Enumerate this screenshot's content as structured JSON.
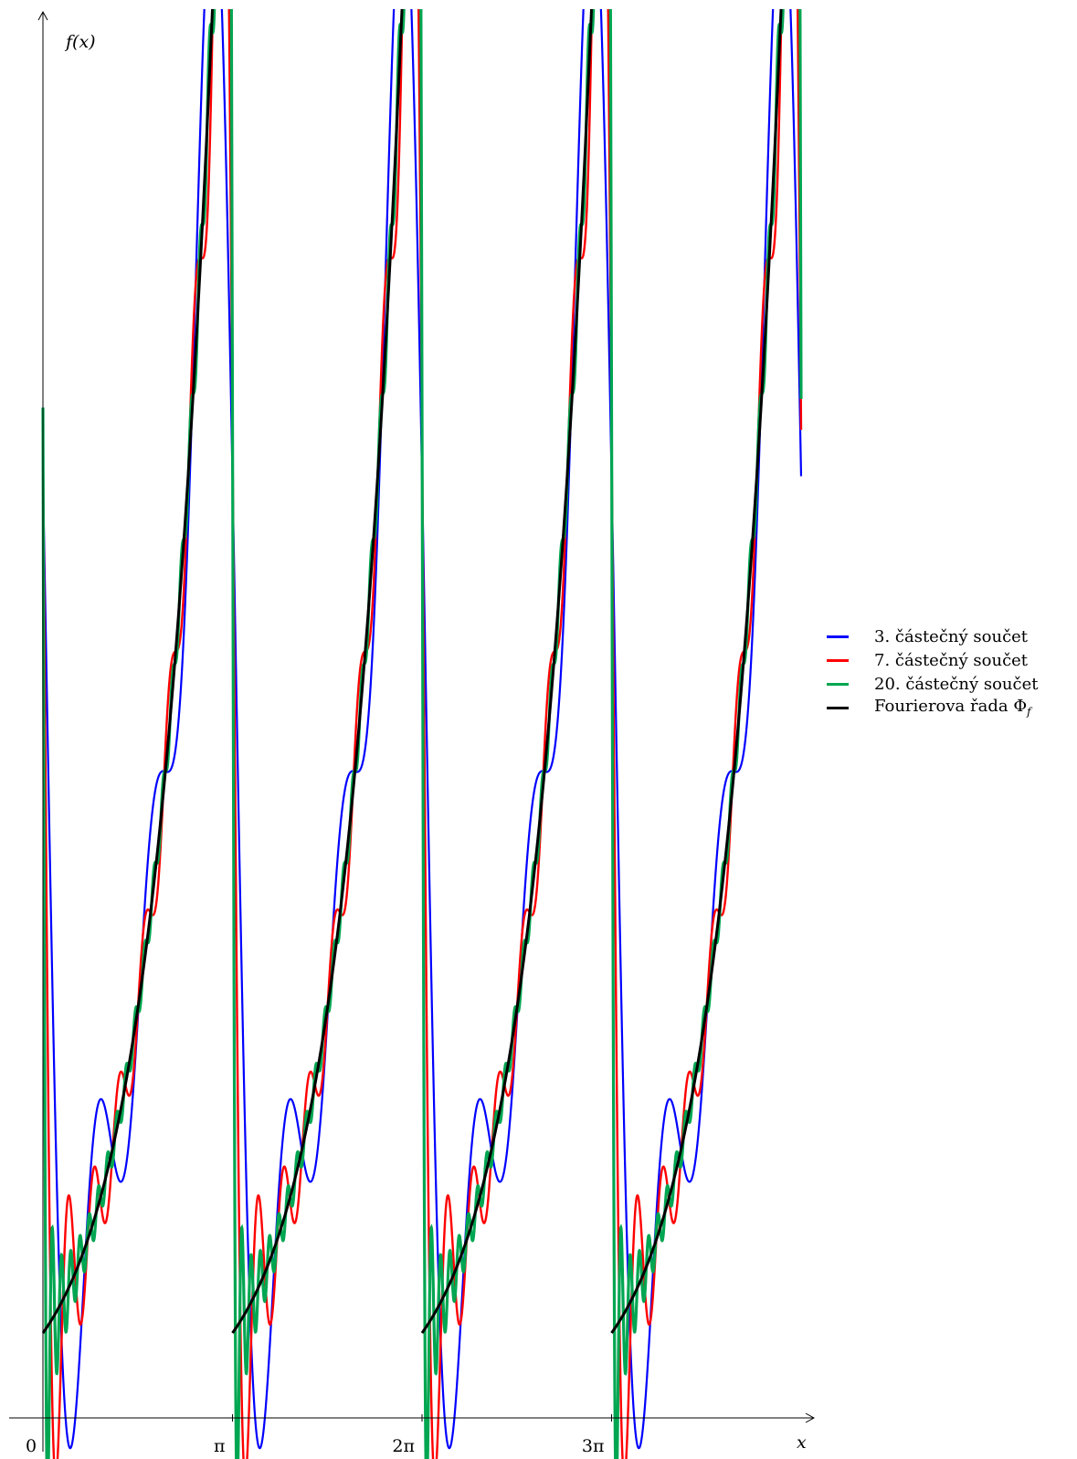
{
  "chart_data": {
    "type": "line",
    "ylabel": "f(x)",
    "xlabel": "x",
    "x_ticks": [
      {
        "value": 0,
        "label": "0"
      },
      {
        "value": 3.14159,
        "label": "π"
      },
      {
        "value": 6.28319,
        "label": "2π"
      },
      {
        "value": 9.42478,
        "label": "3π"
      }
    ],
    "xlim": [
      0,
      12.566
    ],
    "ylim": [
      -0.3,
      5.42
    ],
    "grid": false,
    "legend_position": "right",
    "function": "e^x scaled to exp(π)/? — periodic extension of exp(x) on (0, π) with period π",
    "series": [
      {
        "name": "3. částečný součet",
        "color": "#0000ff",
        "terms": 3
      },
      {
        "name": "7. částečný součet",
        "color": "#ff0000",
        "terms": 7
      },
      {
        "name": "20. částečný součet",
        "color": "#00a651",
        "terms": 20
      },
      {
        "name": "Fourierova řada Φ_f",
        "color": "#000000",
        "terms": "exact"
      }
    ]
  }
}
